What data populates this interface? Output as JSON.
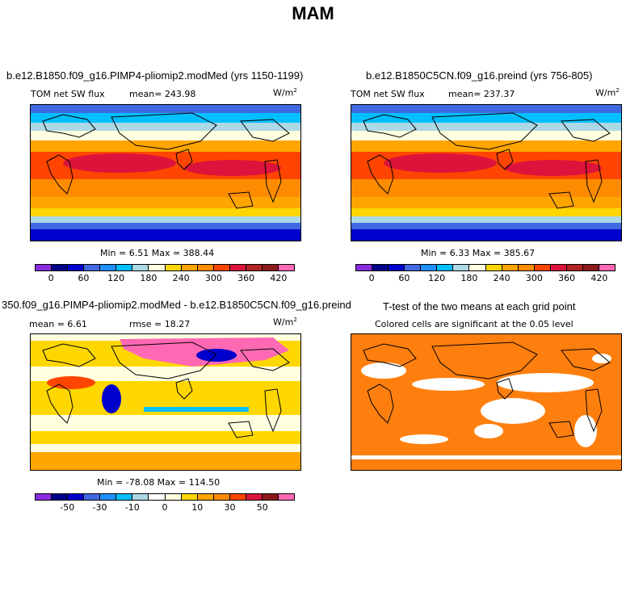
{
  "title": "MAM",
  "panels": {
    "p1": {
      "title": "b.e12.B1850.f09_g16.PIMP4-pliomip2.modMed (yrs 1150-1199)",
      "subtitle": "TOM net SW flux",
      "mean": "mean= 243.98",
      "units": "W/m",
      "units_sup": "2",
      "minmax": "Min =    6.51 Max = 388.44"
    },
    "p2": {
      "title": "b.e12.B1850C5CN.f09_g16.preind (yrs 756-805)",
      "subtitle": "TOM net SW flux",
      "mean": "mean= 237.37",
      "units": "W/m",
      "units_sup": "2",
      "minmax": "Min =    6.33 Max = 385.67"
    },
    "p3": {
      "title": "350.f09_g16.PIMP4-pliomip2.modMed - b.e12.B1850C5CN.f09_g16.preind",
      "mean": "mean =    6.61",
      "rmse": "rmse =  18.27",
      "units": "W/m",
      "units_sup": "2",
      "minmax": "Min = -78.08 Max = 114.50"
    },
    "p4": {
      "title": "T-test of the two means at each grid point",
      "subtitle": "Colored cells are significant at the 0.05 level"
    }
  },
  "colorbars": {
    "abs": {
      "colors": [
        "#8a2be2",
        "#00008b",
        "#0000cd",
        "#4169e1",
        "#1e90ff",
        "#00bfff",
        "#add8e6",
        "#ffffe0",
        "#ffd700",
        "#ffa500",
        "#ff8c00",
        "#ff4500",
        "#dc143c",
        "#b22222",
        "#8b1a1a",
        "#ff69b4"
      ],
      "ticks": [
        "0",
        "60",
        "120",
        "180",
        "240",
        "300",
        "360",
        "420"
      ]
    },
    "diff": {
      "colors": [
        "#8a2be2",
        "#00008b",
        "#0000cd",
        "#4169e1",
        "#1e90ff",
        "#00bfff",
        "#add8e6",
        "#ffffff",
        "#ffffe0",
        "#ffd700",
        "#ffa500",
        "#ff8c00",
        "#ff4500",
        "#dc143c",
        "#8b1a1a",
        "#ff69b4"
      ],
      "ticks": [
        "-50",
        "-30",
        "-10",
        "0",
        "10",
        "30",
        "50"
      ]
    }
  },
  "colors": {
    "significant": "#ff7f0e",
    "insignificant": "#ffffff"
  }
}
